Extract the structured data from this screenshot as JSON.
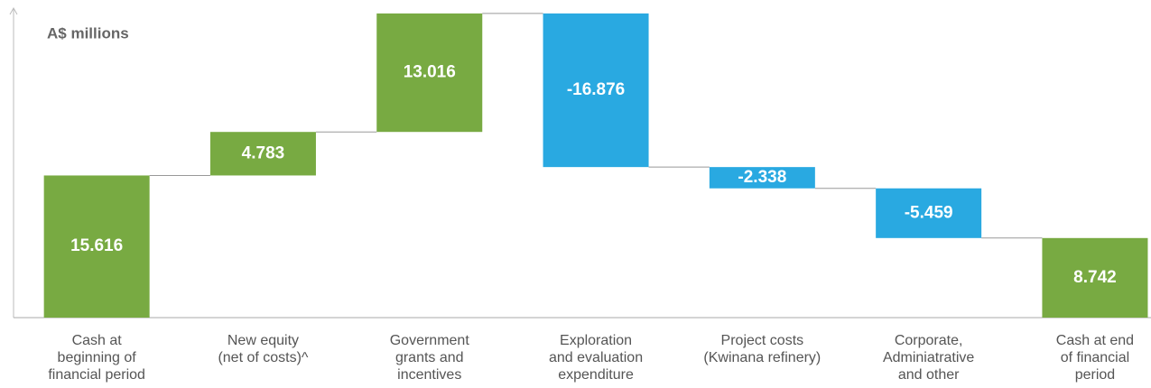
{
  "chart_data": {
    "type": "waterfall",
    "y_label": "A$ millions",
    "categories": [
      [
        "Cash at",
        "beginning of",
        "financial period"
      ],
      [
        "New equity",
        "(net of costs)^"
      ],
      [
        "Government",
        "grants and",
        "incentives"
      ],
      [
        "Exploration",
        "and evaluation",
        "expenditure"
      ],
      [
        "Project costs",
        "(Kwinana refinery)"
      ],
      [
        "Corporate,",
        "Adminiatrative",
        "and other"
      ],
      [
        "Cash at end",
        "of financial",
        "period"
      ]
    ],
    "values": [
      15.616,
      4.783,
      13.016,
      -16.876,
      -2.338,
      -5.459,
      8.742
    ],
    "measure": [
      "absolute",
      "relative",
      "relative",
      "relative",
      "relative",
      "relative",
      "total"
    ],
    "colors": {
      "increase": "#78aa42",
      "decrease": "#29a9e1",
      "total": "#78aa42"
    },
    "ylim": [
      0,
      34
    ]
  }
}
